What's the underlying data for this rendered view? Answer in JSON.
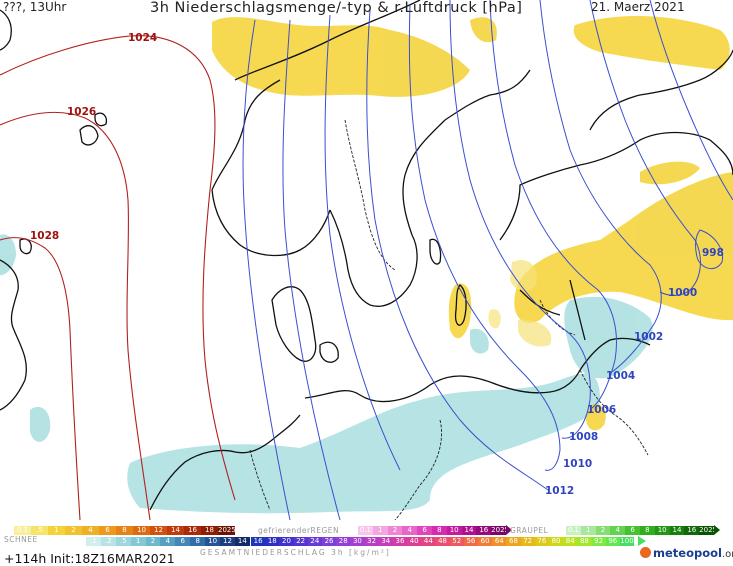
{
  "header": {
    "left": "???, 13Uhr",
    "title": "3h Niederschlagsmenge/-typ & r.Luftdruck [hPa]",
    "date": "21. Maerz 2021"
  },
  "isobars": [
    {
      "label": "1024",
      "kind": "high"
    },
    {
      "label": "1026",
      "kind": "high"
    },
    {
      "label": "1028",
      "kind": "high"
    },
    {
      "label": "998",
      "kind": "low"
    },
    {
      "label": "1000",
      "kind": "low"
    },
    {
      "label": "1002",
      "kind": "low"
    },
    {
      "label": "1004",
      "kind": "low"
    },
    {
      "label": "1006",
      "kind": "low"
    },
    {
      "label": "1008",
      "kind": "low"
    },
    {
      "label": "1010",
      "kind": "low"
    },
    {
      "label": "1012",
      "kind": "low"
    }
  ],
  "colors": {
    "isobar_high": "#b32020",
    "isobar_low": "#3a4fcf",
    "rain": "#f6d62a",
    "snow": "#a8dede",
    "coast": "#111111"
  },
  "legend": {
    "rain_scale": {
      "values": [
        "0.1",
        ".5",
        "1",
        "2",
        "4",
        "6",
        "8",
        "10",
        "12",
        "14",
        "16",
        "18",
        "2025+"
      ],
      "colors": [
        "#f9ee9a",
        "#f7e36a",
        "#f4d23a",
        "#f1c22d",
        "#eeb025",
        "#eb9a1e",
        "#e58317",
        "#dc6b12",
        "#d0520e",
        "#bf3b0b",
        "#a82a08",
        "#8e1d06",
        "#6b1404"
      ]
    },
    "freezing_rain": {
      "label": "gefrierenderREGEN",
      "values": [
        "0.1",
        "1",
        "2",
        "4",
        "6",
        "8",
        "10",
        "14",
        "16",
        "2025+"
      ],
      "colors": [
        "#f7c6ea",
        "#f3a6e0",
        "#ee86d5",
        "#e866ca",
        "#df46bd",
        "#d42bb0",
        "#c41aa0",
        "#ad1090",
        "#960a80",
        "#7a0669"
      ]
    },
    "graupel": {
      "label": "GRAUPEL",
      "values": [
        "0.1",
        "1",
        "2",
        "4",
        "6",
        "8",
        "10",
        "14",
        "16",
        "2025+"
      ],
      "colors": [
        "#c9f2c2",
        "#a8e89c",
        "#86dd76",
        "#64d150",
        "#45c230",
        "#30ae1e",
        "#239714",
        "#197f0d",
        "#116808",
        "#0a5204"
      ]
    },
    "snow": {
      "label": "SCHNEE",
      "values": [
        ".1",
        ".2",
        ".5",
        "1",
        "2",
        "4",
        "6",
        "8",
        "10",
        "12",
        "14"
      ],
      "colors": [
        "#cfeeee",
        "#b7e3e6",
        "#9ed6dd",
        "#85c8d5",
        "#6cb8cd",
        "#559fc3",
        "#4386b8",
        "#336ca9",
        "#255396",
        "#1b3e80",
        "#132b68"
      ]
    },
    "total": {
      "label": "GESAMTNIEDERSCHLAG 3h [kg/m²]",
      "values": [
        "16",
        "18",
        "20",
        "22",
        "24",
        "26",
        "28",
        "30",
        "32",
        "34",
        "36",
        "40",
        "44",
        "48",
        "52",
        "56",
        "60",
        "64",
        "68",
        "72",
        "76",
        "80",
        "84",
        "88",
        "92",
        "96",
        "100"
      ],
      "colors": [
        "#1d36b8",
        "#2b2fc4",
        "#4132cc",
        "#5636d2",
        "#6a3ad6",
        "#7f3ed8",
        "#923fd6",
        "#a53fcf",
        "#b73ec5",
        "#c73cb8",
        "#d33ba9",
        "#dd3d97",
        "#e44384",
        "#ea4d70",
        "#ee5a5c",
        "#f06a48",
        "#f07d36",
        "#ee9128",
        "#eba51e",
        "#e6b918",
        "#dcca16",
        "#cdd81a",
        "#b8e222",
        "#9ee82e",
        "#80ea3e",
        "#62e84f",
        "#46e060"
      ]
    }
  },
  "footer": {
    "forecast": "+114h",
    "init": "Init:18Z16MAR2021",
    "logo": "meteopool",
    "logo_suffix": ".org"
  }
}
